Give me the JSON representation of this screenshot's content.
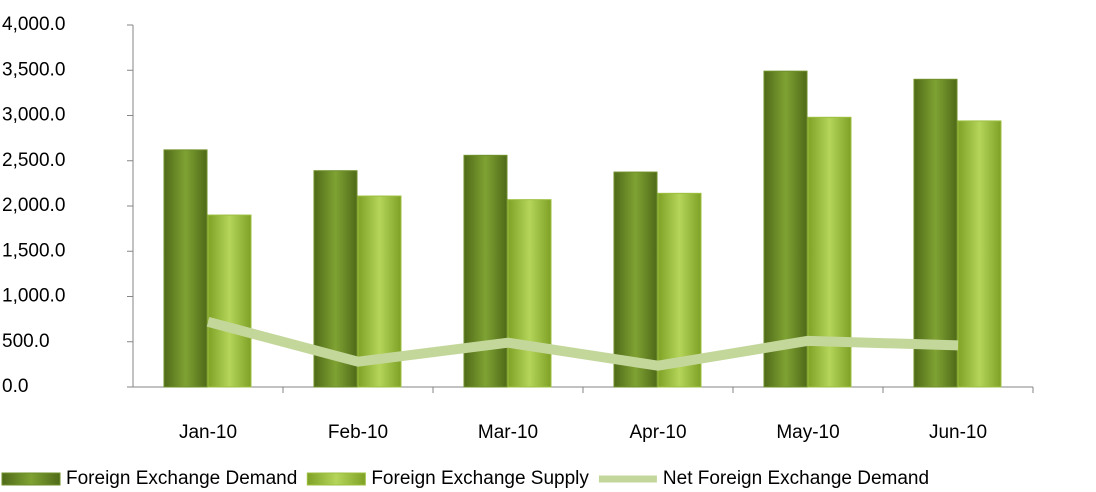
{
  "chart_data": {
    "type": "bar",
    "categories": [
      "Jan-10",
      "Feb-10",
      "Mar-10",
      "Apr-10",
      "May-10",
      "Jun-10"
    ],
    "series": [
      {
        "name": "Foreign Exchange Demand",
        "type": "bar",
        "color": "#6f8f2a",
        "values": [
          2620,
          2390,
          2560,
          2375,
          3490,
          3400
        ]
      },
      {
        "name": "Foreign Exchange Supply",
        "type": "bar",
        "color": "#9cbf3f",
        "values": [
          1900,
          2110,
          2070,
          2140,
          2980,
          2940
        ]
      },
      {
        "name": "Net Foreign Exchange Demand",
        "type": "line",
        "color": "#c4d79b",
        "values": [
          720,
          280,
          490,
          235,
          510,
          460
        ]
      }
    ],
    "ylim": [
      0,
      4000
    ],
    "yticks": [
      {
        "value": 0,
        "label": "0.0"
      },
      {
        "value": 500,
        "label": "500.0"
      },
      {
        "value": 1000,
        "label": "1,000.0"
      },
      {
        "value": 1500,
        "label": "1,500.0"
      },
      {
        "value": 2000,
        "label": "2,000.0"
      },
      {
        "value": 2500,
        "label": "2,500.0"
      },
      {
        "value": 3000,
        "label": "3,000.0"
      },
      {
        "value": 3500,
        "label": "3,500.0"
      },
      {
        "value": 4000,
        "label": "4,000.0"
      }
    ],
    "legend": "bottom",
    "grid": false
  }
}
